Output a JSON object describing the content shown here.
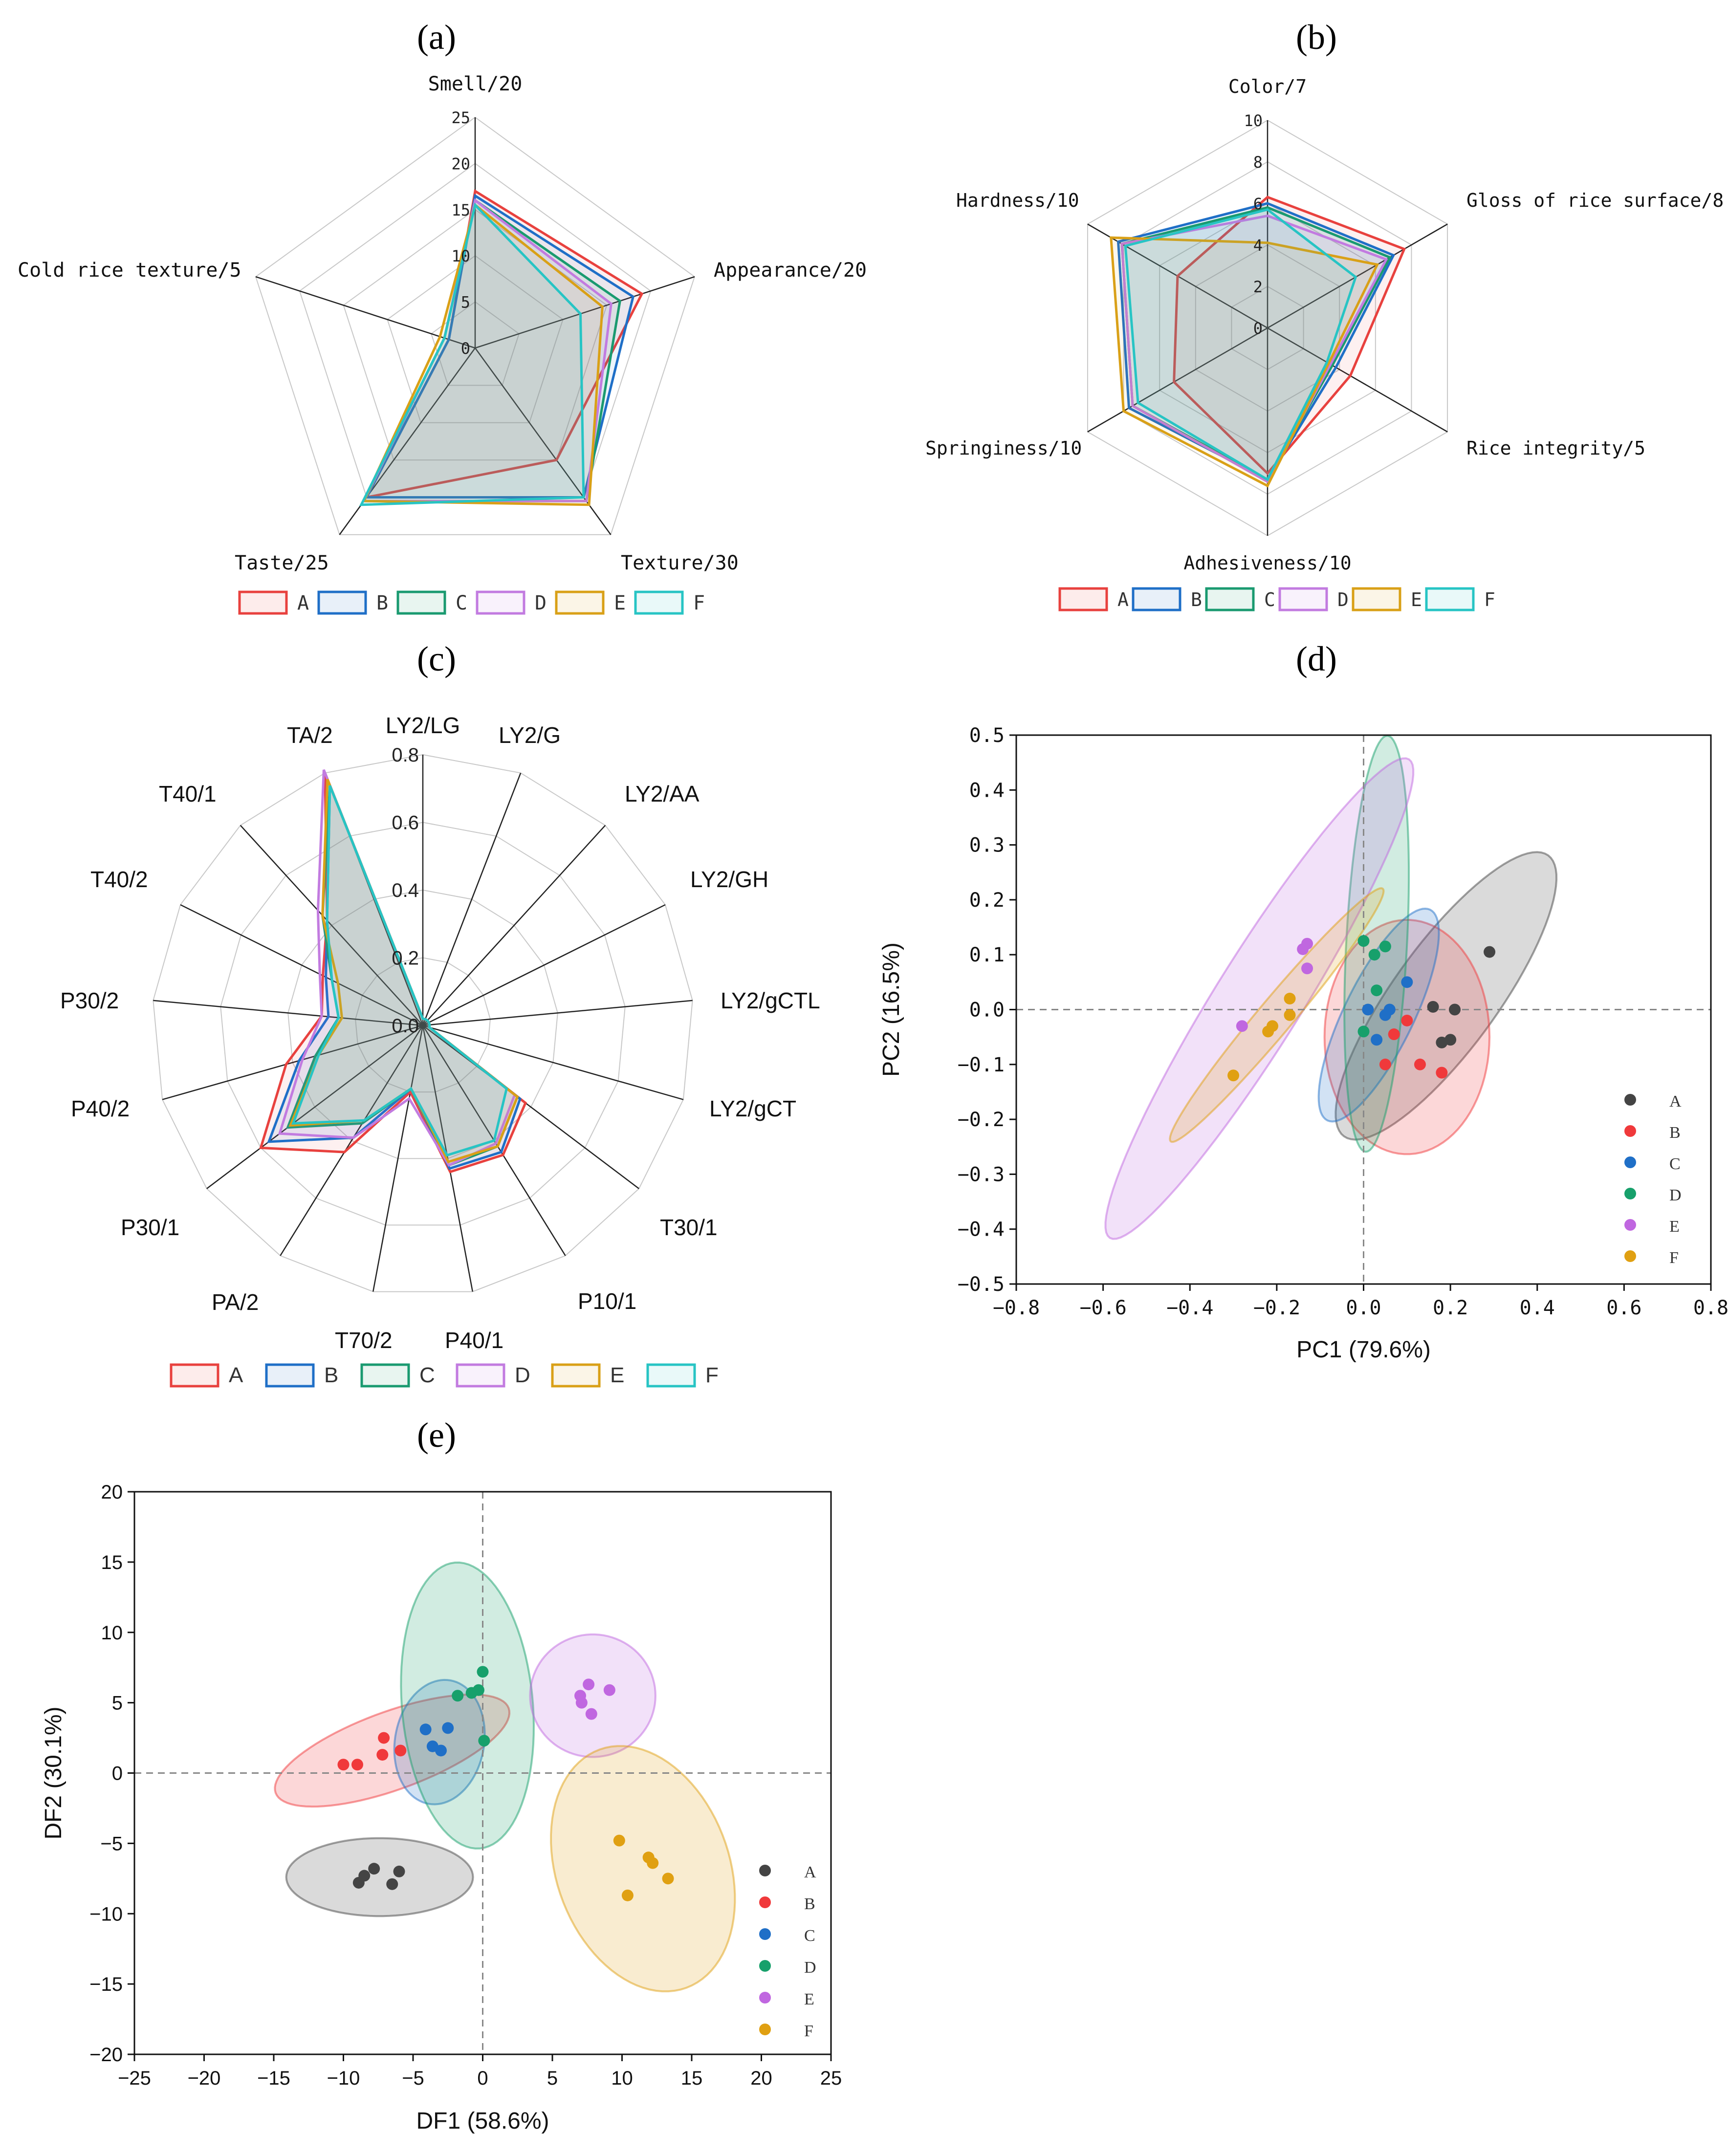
{
  "colors": {
    "A": "#e8413e",
    "B": "#1f6fc7",
    "C": "#1a9a70",
    "D": "#c27be0",
    "E": "#d9a017",
    "F": "#27c4c4",
    "scatter": {
      "A": "#444444",
      "B": "#f0393b",
      "C": "#1f6fc7",
      "D": "#17a06b",
      "E": "#c067e0",
      "F": "#e0a012"
    }
  },
  "chart_data": [
    {
      "id": "a",
      "panel_label": "(a)",
      "type": "radar",
      "axes": [
        "Smell/20",
        "Appearance/20",
        "Texture/30",
        "Taste/25",
        "Cold rice texture/5"
      ],
      "rmax": 25,
      "ticks": [
        "0",
        "5",
        "10",
        "15",
        "20",
        "25"
      ],
      "tick_values": [
        0,
        5,
        10,
        15,
        20,
        25
      ],
      "series": [
        {
          "name": "A",
          "values": [
            17,
            19,
            15,
            20,
            3
          ]
        },
        {
          "name": "B",
          "values": [
            16.5,
            18,
            20,
            20,
            3
          ]
        },
        {
          "name": "C",
          "values": [
            16,
            16.5,
            20.5,
            20.5,
            3.5
          ]
        },
        {
          "name": "D",
          "values": [
            16,
            15.5,
            20.5,
            20.5,
            3.5
          ]
        },
        {
          "name": "E",
          "values": [
            15.5,
            14.5,
            21,
            20.5,
            4
          ]
        },
        {
          "name": "F",
          "values": [
            15.5,
            12,
            20,
            21,
            3.5
          ]
        }
      ],
      "legend": [
        "A",
        "B",
        "C",
        "D",
        "E",
        "F"
      ]
    },
    {
      "id": "b",
      "panel_label": "(b)",
      "type": "radar",
      "axes": [
        "Color/7",
        "Gloss of rice surface/8",
        "Rice integrity/5",
        "Adhesiveness/10",
        "Springiness/10",
        "Hardness/10"
      ],
      "rmax": 10,
      "ticks": [
        "0",
        "2",
        "4",
        "6",
        "8",
        "10"
      ],
      "tick_values": [
        0,
        2,
        4,
        6,
        8,
        10
      ],
      "series": [
        {
          "name": "A",
          "values": [
            6.3,
            7.6,
            4.6,
            7.0,
            5.2,
            5.0
          ]
        },
        {
          "name": "B",
          "values": [
            6.0,
            7.0,
            3.8,
            7.3,
            7.7,
            8.3
          ]
        },
        {
          "name": "C",
          "values": [
            5.8,
            6.8,
            3.6,
            7.3,
            7.5,
            8.1
          ]
        },
        {
          "name": "D",
          "values": [
            5.4,
            6.6,
            3.5,
            7.4,
            7.5,
            8.1
          ]
        },
        {
          "name": "E",
          "values": [
            4.1,
            6.1,
            3.4,
            7.6,
            8.0,
            8.7
          ]
        },
        {
          "name": "F",
          "values": [
            5.7,
            4.9,
            3.3,
            7.3,
            7.2,
            7.9
          ]
        }
      ],
      "legend": [
        "A",
        "B",
        "C",
        "D",
        "E",
        "F"
      ]
    },
    {
      "id": "c",
      "panel_label": "(c)",
      "type": "radar",
      "axes": [
        "LY2/LG",
        "LY2/G",
        "LY2/AA",
        "LY2/GH",
        "LY2/gCTL",
        "LY2/gCT",
        "T30/1",
        "P10/1",
        "P40/1",
        "T70/2",
        "PA/2",
        "P30/1",
        "P40/2",
        "P30/2",
        "T40/2",
        "T40/1",
        "TA/2"
      ],
      "rmax": 0.8,
      "ticks": [
        "0.0",
        "0.2",
        "0.4",
        "0.6",
        "0.8"
      ],
      "tick_values": [
        0,
        0.2,
        0.4,
        0.6,
        0.8
      ],
      "series": [
        {
          "name": "A",
          "values": [
            0.02,
            0.02,
            0.02,
            0.02,
            0.02,
            0.02,
            0.38,
            0.45,
            0.44,
            0.2,
            0.44,
            0.6,
            0.42,
            0.3,
            0.33,
            0.42,
            0.8
          ]
        },
        {
          "name": "B",
          "values": [
            0.02,
            0.02,
            0.02,
            0.02,
            0.02,
            0.02,
            0.36,
            0.44,
            0.43,
            0.19,
            0.39,
            0.57,
            0.38,
            0.28,
            0.32,
            0.42,
            0.76
          ]
        },
        {
          "name": "C",
          "values": [
            0.02,
            0.02,
            0.02,
            0.02,
            0.02,
            0.02,
            0.35,
            0.42,
            0.42,
            0.19,
            0.34,
            0.5,
            0.33,
            0.25,
            0.3,
            0.44,
            0.76
          ]
        },
        {
          "name": "D",
          "values": [
            0.02,
            0.02,
            0.02,
            0.02,
            0.02,
            0.02,
            0.34,
            0.41,
            0.42,
            0.22,
            0.39,
            0.53,
            0.37,
            0.3,
            0.34,
            0.46,
            0.81
          ]
        },
        {
          "name": "E",
          "values": [
            0.02,
            0.02,
            0.02,
            0.02,
            0.02,
            0.02,
            0.35,
            0.42,
            0.41,
            0.19,
            0.33,
            0.49,
            0.32,
            0.24,
            0.28,
            0.44,
            0.78
          ]
        },
        {
          "name": "F",
          "values": [
            0.02,
            0.02,
            0.02,
            0.02,
            0.02,
            0.02,
            0.31,
            0.4,
            0.39,
            0.19,
            0.33,
            0.48,
            0.32,
            0.25,
            0.3,
            0.42,
            0.76
          ]
        }
      ],
      "legend": [
        "A",
        "B",
        "C",
        "D",
        "E",
        "F"
      ]
    },
    {
      "id": "d",
      "panel_label": "(d)",
      "type": "scatter",
      "xlabel": "PC1 (79.6%)",
      "ylabel": "PC2 (16.5%)",
      "xlim": [
        -0.8,
        0.8
      ],
      "ylim": [
        -0.5,
        0.5
      ],
      "xticks": [
        "−0.8",
        "−0.6",
        "−0.4",
        "−0.2",
        "0.0",
        "0.2",
        "0.4",
        "0.6",
        "0.8"
      ],
      "yticks": [
        "−0.5",
        "−0.4",
        "−0.3",
        "−0.2",
        "−0.1",
        "0.0",
        "0.1",
        "0.2",
        "0.3",
        "0.4",
        "0.5"
      ],
      "series": [
        {
          "name": "A",
          "points": [
            [
              0.29,
              0.105
            ],
            [
              0.21,
              0.0
            ],
            [
              0.16,
              0.005
            ],
            [
              0.18,
              -0.06
            ],
            [
              0.2,
              -0.055
            ]
          ],
          "ellipse": {
            "cx": 0.19,
            "cy": 0.025,
            "rx": 0.4,
            "ry": 0.12,
            "angle_deg": 54
          }
        },
        {
          "name": "B",
          "points": [
            [
              0.18,
              -0.115
            ],
            [
              0.13,
              -0.1
            ],
            [
              0.05,
              -0.1
            ],
            [
              0.07,
              -0.045
            ],
            [
              0.1,
              -0.02
            ]
          ],
          "ellipse": {
            "cx": 0.1,
            "cy": -0.05,
            "rx": 0.19,
            "ry": 0.27,
            "angle_deg": 0
          }
        },
        {
          "name": "C",
          "points": [
            [
              0.1,
              0.05
            ],
            [
              0.06,
              0.0
            ],
            [
              0.03,
              -0.055
            ],
            [
              0.05,
              -0.01
            ],
            [
              0.01,
              0.0
            ]
          ],
          "ellipse": {
            "cx": 0.035,
            "cy": -0.01,
            "rx": 0.27,
            "ry": 0.08,
            "angle_deg": 64
          }
        },
        {
          "name": "D",
          "points": [
            [
              0.0,
              0.125
            ],
            [
              0.05,
              0.115
            ],
            [
              0.025,
              0.1
            ],
            [
              0.03,
              0.035
            ],
            [
              0.0,
              -0.04
            ]
          ],
          "ellipse": {
            "cx": 0.03,
            "cy": 0.12,
            "rx": 0.48,
            "ry": 0.07,
            "angle_deg": 87
          }
        },
        {
          "name": "E",
          "points": [
            [
              -0.13,
              0.12
            ],
            [
              -0.14,
              0.11
            ],
            [
              -0.13,
              0.075
            ],
            [
              -0.28,
              -0.03
            ]
          ],
          "ellipse": {
            "cx": -0.24,
            "cy": 0.02,
            "rx": 0.65,
            "ry": 0.1,
            "angle_deg": 58
          }
        },
        {
          "name": "F",
          "points": [
            [
              -0.17,
              0.02
            ],
            [
              -0.17,
              -0.01
            ],
            [
              -0.21,
              -0.03
            ],
            [
              -0.22,
              -0.04
            ],
            [
              -0.3,
              -0.12
            ]
          ],
          "ellipse": {
            "cx": -0.2,
            "cy": -0.01,
            "rx": 0.38,
            "ry": 0.04,
            "angle_deg": 50
          }
        }
      ],
      "legend": [
        "A",
        "B",
        "C",
        "D",
        "E",
        "F"
      ]
    },
    {
      "id": "e",
      "panel_label": "(e)",
      "type": "scatter",
      "xlabel": "DF1 (58.6%)",
      "ylabel": "DF2 (30.1%)",
      "xlim": [
        -25,
        25
      ],
      "ylim": [
        -20,
        20
      ],
      "xticks": [
        "−25",
        "−20",
        "−15",
        "−10",
        "−5",
        "0",
        "5",
        "10",
        "15",
        "20",
        "25"
      ],
      "yticks": [
        "−20",
        "−15",
        "−10",
        "−5",
        "0",
        "5",
        "10",
        "15",
        "20"
      ],
      "series": [
        {
          "name": "A",
          "points": [
            [
              -7.8,
              -6.8
            ],
            [
              -6,
              -7
            ],
            [
              -8.5,
              -7.3
            ],
            [
              -6.5,
              -7.9
            ],
            [
              -8.9,
              -7.8
            ]
          ],
          "ellipse": {
            "cx": -7.4,
            "cy": -7.4,
            "rx": 6.7,
            "ry": 2.8,
            "angle_deg": 0
          }
        },
        {
          "name": "B",
          "points": [
            [
              -7.1,
              2.5
            ],
            [
              -5.9,
              1.6
            ],
            [
              -7.2,
              1.3
            ],
            [
              -9,
              0.6
            ],
            [
              -10,
              0.6
            ]
          ],
          "ellipse": {
            "cx": -6.5,
            "cy": 1.6,
            "rx": 8.9,
            "ry": 2.8,
            "angle_deg": 20
          }
        },
        {
          "name": "C",
          "points": [
            [
              -4.1,
              3.1
            ],
            [
              -2.5,
              3.2
            ],
            [
              -3.6,
              1.9
            ],
            [
              -3,
              1.6
            ]
          ],
          "ellipse": {
            "cx": -3.1,
            "cy": 2.2,
            "rx": 4.5,
            "ry": 3.2,
            "angle_deg": 80
          }
        },
        {
          "name": "D",
          "points": [
            [
              0,
              7.2
            ],
            [
              -0.3,
              5.9
            ],
            [
              -0.8,
              5.7
            ],
            [
              -1.8,
              5.5
            ],
            [
              0.1,
              2.3
            ]
          ],
          "ellipse": {
            "cx": -1.1,
            "cy": 4.8,
            "rx": 10.3,
            "ry": 4.7,
            "angle_deg": 95
          }
        },
        {
          "name": "E",
          "points": [
            [
              7.6,
              6.3
            ],
            [
              9.1,
              5.9
            ],
            [
              7,
              5.5
            ],
            [
              7.1,
              5.0
            ],
            [
              7.8,
              4.2
            ]
          ],
          "ellipse": {
            "cx": 7.9,
            "cy": 5.5,
            "rx": 4.5,
            "ry": 4.4,
            "angle_deg": 0
          }
        },
        {
          "name": "F",
          "points": [
            [
              9.8,
              -4.8
            ],
            [
              11.9,
              -6
            ],
            [
              12.2,
              -6.4
            ],
            [
              13.3,
              -7.5
            ],
            [
              10.4,
              -8.7
            ]
          ],
          "ellipse": {
            "cx": 11.5,
            "cy": -6.8,
            "rx": 9.1,
            "ry": 6.2,
            "angle_deg": 110
          }
        }
      ],
      "legend": [
        "A",
        "B",
        "C",
        "D",
        "E",
        "F"
      ]
    }
  ]
}
